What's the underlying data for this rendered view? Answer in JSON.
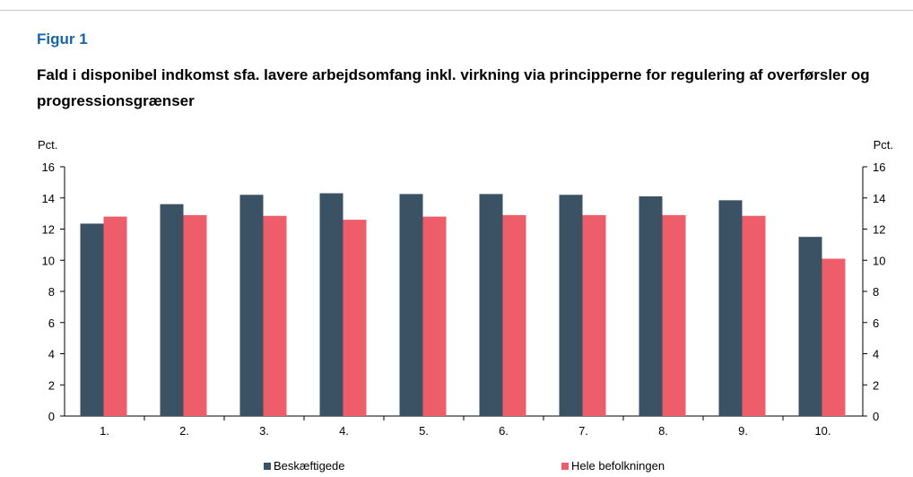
{
  "figure": {
    "label": "Figur 1",
    "title": "Fald i disponibel indkomst sfa. lavere arbejdsomfang inkl. virkning via principperne for regulering af overførsler og progressionsgrænser"
  },
  "colors": {
    "series_1": "#3b5264",
    "series_2": "#ee5d6a",
    "axis": "#000000",
    "accent": "#1565a8"
  },
  "chart_data": {
    "type": "bar",
    "categories": [
      "1.",
      "2.",
      "3.",
      "4.",
      "5.",
      "6.",
      "7.",
      "8.",
      "9.",
      "10."
    ],
    "series": [
      {
        "name": "Beskæftigede",
        "values": [
          12.35,
          13.6,
          14.2,
          14.3,
          14.25,
          14.25,
          14.2,
          14.1,
          13.85,
          11.5
        ]
      },
      {
        "name": "Hele befolkningen",
        "values": [
          12.8,
          12.9,
          12.85,
          12.6,
          12.8,
          12.9,
          12.9,
          12.9,
          12.85,
          10.1
        ]
      }
    ],
    "ylabel_left": "Pct.",
    "ylabel_right": "Pct.",
    "ylim": [
      0,
      16
    ],
    "yticks": [
      "0",
      "2",
      "4",
      "6",
      "8",
      "10",
      "12",
      "14",
      "16"
    ],
    "grid": false,
    "legend_position": "bottom"
  }
}
